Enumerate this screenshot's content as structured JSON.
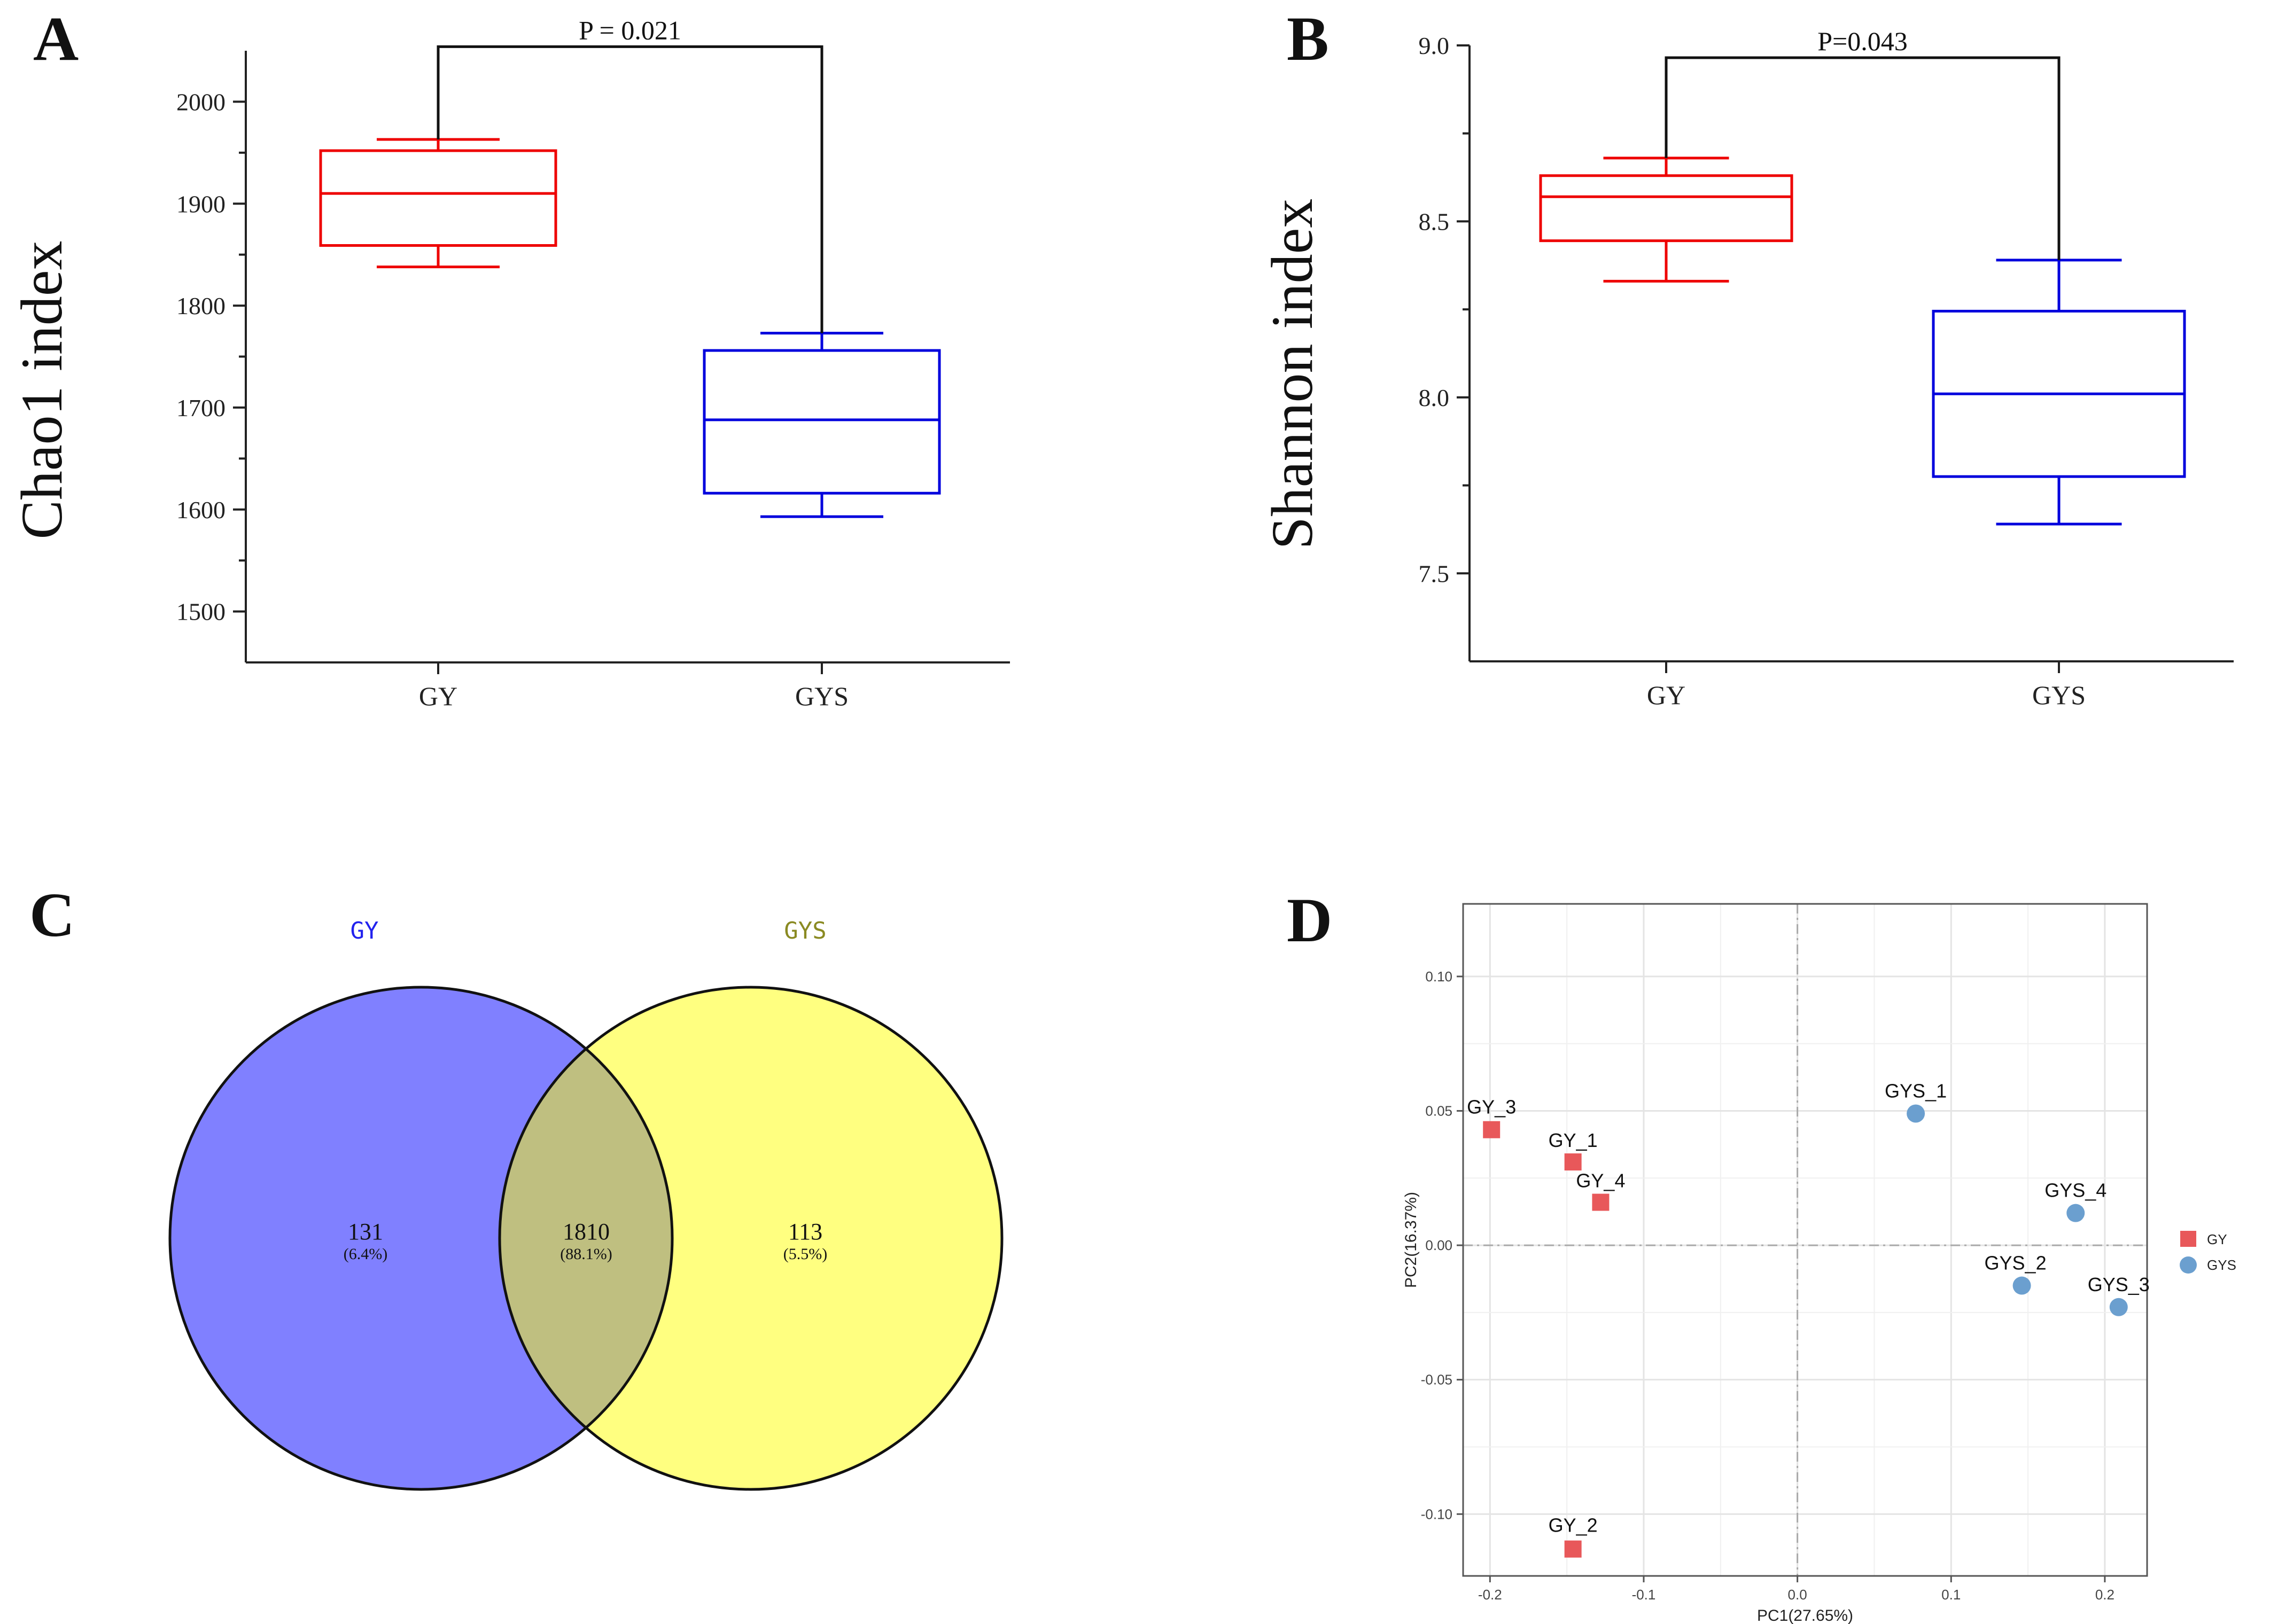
{
  "panels": [
    {
      "letter": "A"
    },
    {
      "letter": "B"
    },
    {
      "letter": "C"
    },
    {
      "letter": "D"
    }
  ],
  "chart_data": [
    {
      "type": "boxplot",
      "panel": "A",
      "ylabel": "Chao1 index",
      "categories": [
        "GY",
        "GYS"
      ],
      "yticks": [
        1500,
        1600,
        1700,
        1800,
        1900,
        2000
      ],
      "ylim": [
        1450,
        2050
      ],
      "boxes": [
        {
          "name": "GY",
          "color": "#ee0000",
          "whisker_low": 1838,
          "q1": 1859,
          "median": 1910,
          "q3": 1952,
          "whisker_high": 1963
        },
        {
          "name": "GYS",
          "color": "#0000dd",
          "whisker_low": 1593,
          "q1": 1616,
          "median": 1688,
          "q3": 1756,
          "whisker_high": 1773
        }
      ],
      "significance": {
        "label": "P = 0.021",
        "y": 2054
      }
    },
    {
      "type": "boxplot",
      "panel": "B",
      "ylabel": "Shannon index",
      "categories": [
        "GY",
        "GYS"
      ],
      "yticks": [
        "7.5",
        "8.0",
        "8.5",
        "9.0"
      ],
      "ylim": [
        7.25,
        9.0
      ],
      "boxes": [
        {
          "name": "GY",
          "color": "#ee0000",
          "whisker_low": 8.33,
          "q1": 8.445,
          "median": 8.57,
          "q3": 8.63,
          "whisker_high": 8.68
        },
        {
          "name": "GYS",
          "color": "#0000dd",
          "whisker_low": 7.64,
          "q1": 7.775,
          "median": 8.01,
          "q3": 8.245,
          "whisker_high": 8.39
        }
      ],
      "significance": {
        "label": "P=0.043",
        "y": 8.965
      }
    },
    {
      "type": "venn",
      "panel": "C",
      "sets": [
        {
          "name": "GY",
          "color": "#8080ff",
          "label_color": "#2222ee"
        },
        {
          "name": "GYS",
          "color": "#ffff80",
          "label_color": "#8a8a22"
        }
      ],
      "overlap_color": "#bfbf80",
      "regions": [
        {
          "count": "131",
          "percent": "(6.4%)"
        },
        {
          "count": "1810",
          "percent": "(88.1%)"
        },
        {
          "count": "113",
          "percent": "(5.5%)"
        }
      ]
    },
    {
      "type": "scatter",
      "panel": "D",
      "xlabel": "PC1(27.65%)",
      "ylabel": "PC2(16.37%)",
      "xlim": [
        -0.2175,
        0.2275
      ],
      "ylim": [
        -0.123,
        0.127
      ],
      "xticks": [
        "-0.2",
        "-0.1",
        "0.0",
        "0.1",
        "0.2"
      ],
      "yticks": [
        "-0.10",
        "-0.05",
        "0.00",
        "0.05",
        "0.10"
      ],
      "grid": true,
      "legend_position": "right",
      "series": [
        {
          "name": "GY",
          "marker": "square",
          "color": "#e8585a",
          "points": [
            {
              "label": "GY_1",
              "x": -0.146,
              "y": 0.031
            },
            {
              "label": "GY_2",
              "x": -0.146,
              "y": -0.113
            },
            {
              "label": "GY_3",
              "x": -0.199,
              "y": 0.043
            },
            {
              "label": "GY_4",
              "x": -0.128,
              "y": 0.016
            }
          ]
        },
        {
          "name": "GYS",
          "marker": "circle",
          "color": "#6b9fcf",
          "points": [
            {
              "label": "GYS_1",
              "x": 0.077,
              "y": 0.049
            },
            {
              "label": "GYS_2",
              "x": 0.146,
              "y": -0.015
            },
            {
              "label": "GYS_3",
              "x": 0.209,
              "y": -0.023
            },
            {
              "label": "GYS_4",
              "x": 0.181,
              "y": 0.012
            }
          ]
        }
      ]
    }
  ]
}
